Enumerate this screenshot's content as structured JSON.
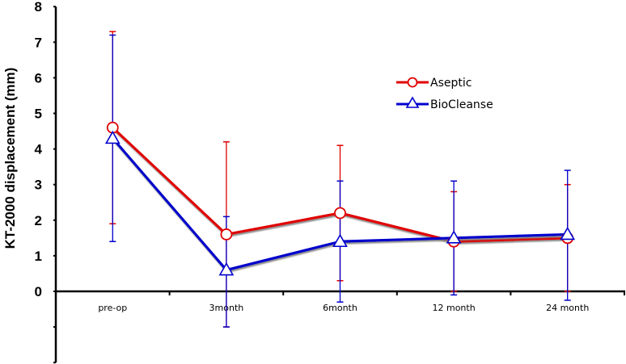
{
  "chart_data": {
    "type": "line",
    "title": "",
    "xlabel": "",
    "ylabel": "KT-2000 displacement (mm)",
    "ylim": [
      -2,
      8
    ],
    "yticks": [
      0,
      1,
      2,
      3,
      4,
      5,
      6,
      7,
      8
    ],
    "ytick_labels": [
      "0",
      "1",
      "2",
      "3",
      "4",
      "5",
      "6",
      "7",
      "8"
    ],
    "unlabeled_yticks": [
      -1,
      -2
    ],
    "categories": [
      "pre-op",
      "3month",
      "6month",
      "12 month",
      "24 month"
    ],
    "grid": false,
    "legend_position": "upper right (inside plot)",
    "error_bars": true,
    "series": [
      {
        "name": "Aseptic",
        "color": "#e00000",
        "marker": "circle",
        "values": [
          4.6,
          1.6,
          2.2,
          1.4,
          1.5
        ],
        "error_upper": [
          7.3,
          4.2,
          4.1,
          2.8,
          3.0
        ],
        "error_lower": [
          1.9,
          -1.0,
          0.3,
          0.0,
          0.0
        ]
      },
      {
        "name": "BioCleanse",
        "color": "#0000cc",
        "marker": "triangle",
        "values": [
          4.3,
          0.6,
          1.4,
          1.5,
          1.6
        ],
        "error_upper": [
          7.2,
          2.1,
          3.1,
          3.1,
          3.4
        ],
        "error_lower": [
          1.4,
          -1.0,
          -0.3,
          -0.1,
          -0.25
        ]
      }
    ]
  },
  "legend": {
    "items": [
      {
        "label": "Aseptic"
      },
      {
        "label": "BioCleanse"
      }
    ]
  }
}
